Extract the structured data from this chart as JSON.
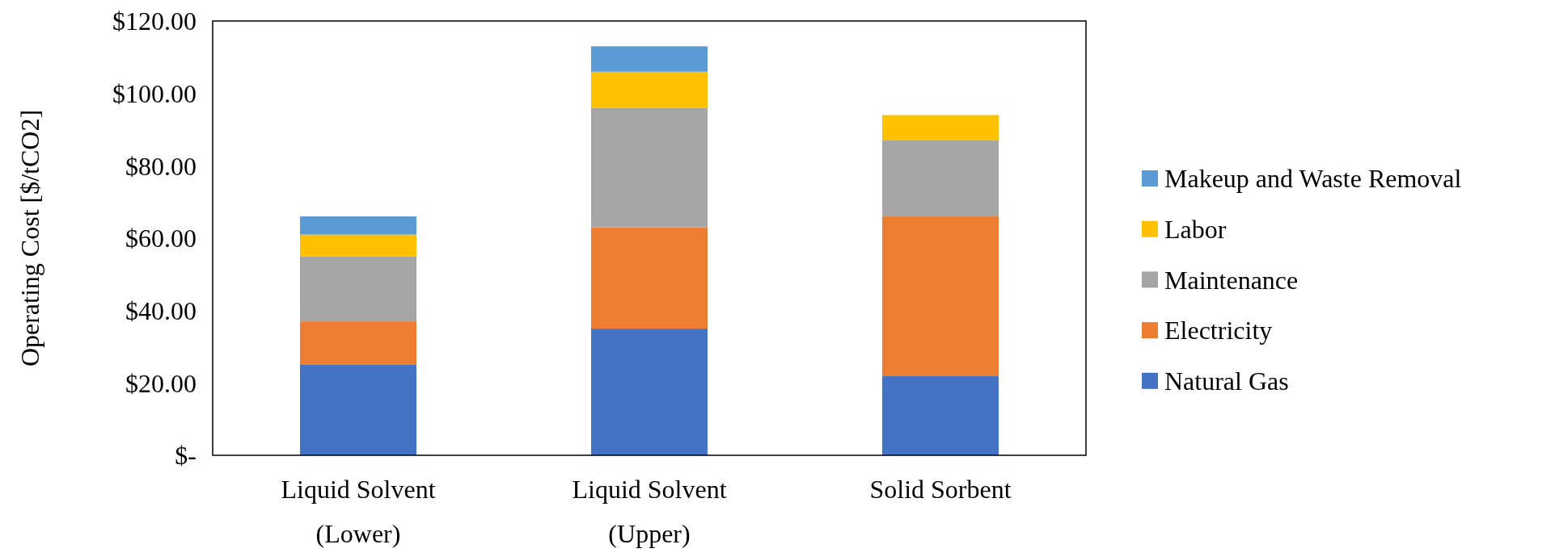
{
  "chart_data": {
    "type": "bar",
    "stacked": true,
    "categories": [
      "Liquid Solvent (Lower)",
      "Liquid Solvent (Upper)",
      "Solid Sorbent"
    ],
    "ylabel": "Operating Cost [$/tCO2]",
    "ylim": [
      0,
      120
    ],
    "yticks": [
      {
        "value": 0,
        "label": "$-"
      },
      {
        "value": 20,
        "label": "$20.00"
      },
      {
        "value": 40,
        "label": "$40.00"
      },
      {
        "value": 60,
        "label": "$60.00"
      },
      {
        "value": 80,
        "label": "$80.00"
      },
      {
        "value": 100,
        "label": "$100.00"
      },
      {
        "value": 120,
        "label": "$120.00"
      }
    ],
    "legend": "right",
    "grid": false,
    "series": [
      {
        "name": "Natural Gas",
        "color": "#4472c4",
        "values": [
          25,
          35,
          22
        ]
      },
      {
        "name": "Electricity",
        "color": "#ed7d31",
        "values": [
          12,
          28,
          44
        ]
      },
      {
        "name": "Maintenance",
        "color": "#a5a5a5",
        "values": [
          18,
          33,
          21
        ]
      },
      {
        "name": "Labor",
        "color": "#ffc000",
        "values": [
          6,
          10,
          7
        ]
      },
      {
        "name": "Makeup and Waste Removal",
        "color": "#5b9bd5",
        "values": [
          5,
          7,
          null
        ]
      }
    ]
  }
}
